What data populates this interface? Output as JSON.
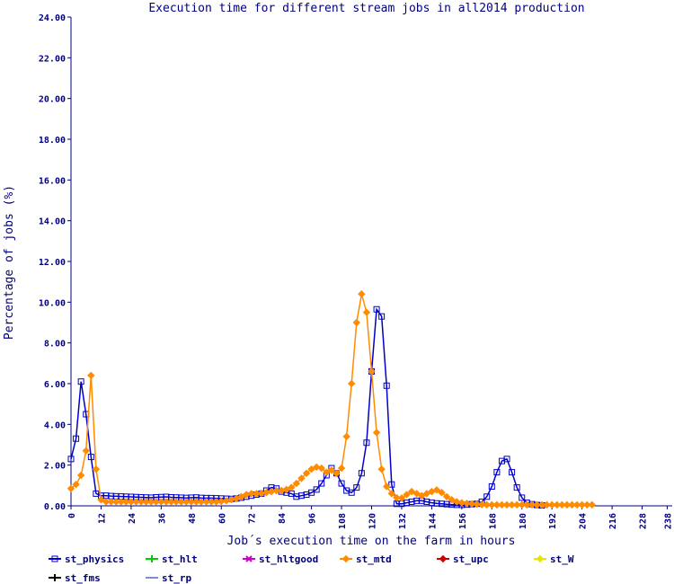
{
  "chart_data": {
    "type": "line",
    "title": "Execution time for different stream jobs in all2014 production",
    "xlabel": "Job´s execution time on the farm in hours",
    "ylabel": "Percentage of jobs (%)",
    "xlim": [
      0,
      240
    ],
    "ylim": [
      0,
      24
    ],
    "x_ticks": [
      "0",
      "12",
      "24",
      "36",
      "48",
      "60",
      "72",
      "84",
      "96",
      "108",
      "120",
      "132",
      "144",
      "156",
      "168",
      "180",
      "192",
      "204",
      "216",
      "228",
      "238"
    ],
    "y_ticks": [
      "0.00",
      "2.00",
      "4.00",
      "6.00",
      "8.00",
      "10.00",
      "12.00",
      "14.00",
      "16.00",
      "18.00",
      "20.00",
      "22.00",
      "24.00"
    ],
    "grid": false,
    "legend_position": "bottom",
    "colors": {
      "axis": "#000080",
      "st_physics": "#0000cc",
      "st_hlt": "#00cc00",
      "st_hltgood": "#cc00cc",
      "st_mtd": "#ff8c00",
      "st_upc": "#cc0000",
      "st_W": "#e6e600",
      "st_fms": "#000000",
      "st_rp": "#8888cc"
    },
    "legend": [
      {
        "name": "st_physics",
        "marker": "square"
      },
      {
        "name": "st_hlt",
        "marker": "plus"
      },
      {
        "name": "st_hltgood",
        "marker": "x"
      },
      {
        "name": "st_mtd",
        "marker": "diamond"
      },
      {
        "name": "st_upc",
        "marker": "diamond"
      },
      {
        "name": "st_W",
        "marker": "diamond"
      },
      {
        "name": "st_fms",
        "marker": "plus"
      },
      {
        "name": "st_rp",
        "marker": "none"
      }
    ],
    "series": [
      {
        "name": "st_physics",
        "marker": "square",
        "x": [
          0,
          2,
          4,
          6,
          8,
          10,
          12,
          14,
          16,
          18,
          20,
          22,
          24,
          26,
          28,
          30,
          32,
          34,
          36,
          38,
          40,
          42,
          44,
          46,
          48,
          50,
          52,
          54,
          56,
          58,
          60,
          62,
          64,
          66,
          68,
          70,
          72,
          74,
          76,
          78,
          80,
          82,
          84,
          86,
          88,
          90,
          92,
          94,
          96,
          98,
          100,
          102,
          104,
          106,
          108,
          110,
          112,
          114,
          116,
          118,
          120,
          122,
          124,
          126,
          128,
          130,
          132,
          134,
          136,
          138,
          140,
          142,
          144,
          146,
          148,
          150,
          152,
          154,
          156,
          158,
          160,
          162,
          164,
          166,
          168,
          170,
          172,
          174,
          176,
          178,
          180,
          182,
          184,
          186,
          188
        ],
        "y": [
          2.3,
          3.3,
          6.1,
          4.5,
          2.4,
          0.6,
          0.5,
          0.5,
          0.48,
          0.47,
          0.46,
          0.45,
          0.44,
          0.43,
          0.42,
          0.41,
          0.4,
          0.42,
          0.43,
          0.44,
          0.42,
          0.41,
          0.4,
          0.39,
          0.4,
          0.41,
          0.39,
          0.38,
          0.38,
          0.37,
          0.36,
          0.35,
          0.34,
          0.36,
          0.4,
          0.45,
          0.5,
          0.55,
          0.6,
          0.75,
          0.9,
          0.85,
          0.7,
          0.65,
          0.6,
          0.45,
          0.5,
          0.55,
          0.65,
          0.8,
          1.1,
          1.5,
          1.85,
          1.6,
          1.1,
          0.75,
          0.65,
          0.9,
          1.6,
          3.1,
          6.6,
          9.65,
          9.3,
          5.9,
          1.05,
          0.1,
          0.1,
          0.15,
          0.2,
          0.25,
          0.25,
          0.2,
          0.15,
          0.12,
          0.1,
          0.08,
          0.06,
          0.05,
          0.05,
          0.06,
          0.08,
          0.1,
          0.2,
          0.45,
          0.95,
          1.65,
          2.2,
          2.3,
          1.65,
          0.9,
          0.4,
          0.15,
          0.08,
          0.04,
          0.02
        ]
      },
      {
        "name": "st_mtd",
        "marker": "diamond",
        "x": [
          0,
          2,
          4,
          6,
          8,
          10,
          12,
          14,
          16,
          18,
          20,
          22,
          24,
          26,
          28,
          30,
          32,
          34,
          36,
          38,
          40,
          42,
          44,
          46,
          48,
          50,
          52,
          54,
          56,
          58,
          60,
          62,
          64,
          66,
          68,
          70,
          72,
          74,
          76,
          78,
          80,
          82,
          84,
          86,
          88,
          90,
          92,
          94,
          96,
          98,
          100,
          102,
          104,
          106,
          108,
          110,
          112,
          114,
          116,
          118,
          120,
          122,
          124,
          126,
          128,
          130,
          132,
          134,
          136,
          138,
          140,
          142,
          144,
          146,
          148,
          150,
          152,
          154,
          156,
          158,
          160,
          162,
          164,
          166,
          168,
          170,
          172,
          174,
          176,
          178,
          180,
          182,
          184,
          186,
          188,
          190,
          192,
          194,
          196,
          198,
          200,
          202,
          204,
          206,
          208
        ],
        "y": [
          0.85,
          1.05,
          1.5,
          2.7,
          6.4,
          1.8,
          0.3,
          0.2,
          0.2,
          0.2,
          0.2,
          0.2,
          0.2,
          0.2,
          0.2,
          0.2,
          0.2,
          0.2,
          0.2,
          0.2,
          0.2,
          0.2,
          0.2,
          0.2,
          0.2,
          0.2,
          0.2,
          0.2,
          0.2,
          0.2,
          0.22,
          0.25,
          0.3,
          0.35,
          0.45,
          0.55,
          0.6,
          0.6,
          0.62,
          0.65,
          0.7,
          0.75,
          0.75,
          0.8,
          0.9,
          1.1,
          1.35,
          1.6,
          1.8,
          1.9,
          1.85,
          1.65,
          1.75,
          1.6,
          1.85,
          3.4,
          6.0,
          9.0,
          10.4,
          9.5,
          6.6,
          3.6,
          1.8,
          0.95,
          0.6,
          0.4,
          0.38,
          0.55,
          0.7,
          0.6,
          0.5,
          0.6,
          0.7,
          0.78,
          0.65,
          0.45,
          0.3,
          0.2,
          0.15,
          0.12,
          0.1,
          0.08,
          0.06,
          0.05,
          0.05,
          0.05,
          0.05,
          0.05,
          0.05,
          0.05,
          0.05,
          0.05,
          0.05,
          0.05,
          0.05,
          0.05,
          0.05,
          0.05,
          0.05,
          0.05,
          0.05,
          0.05,
          0.05,
          0.05,
          0.05
        ]
      }
    ]
  }
}
